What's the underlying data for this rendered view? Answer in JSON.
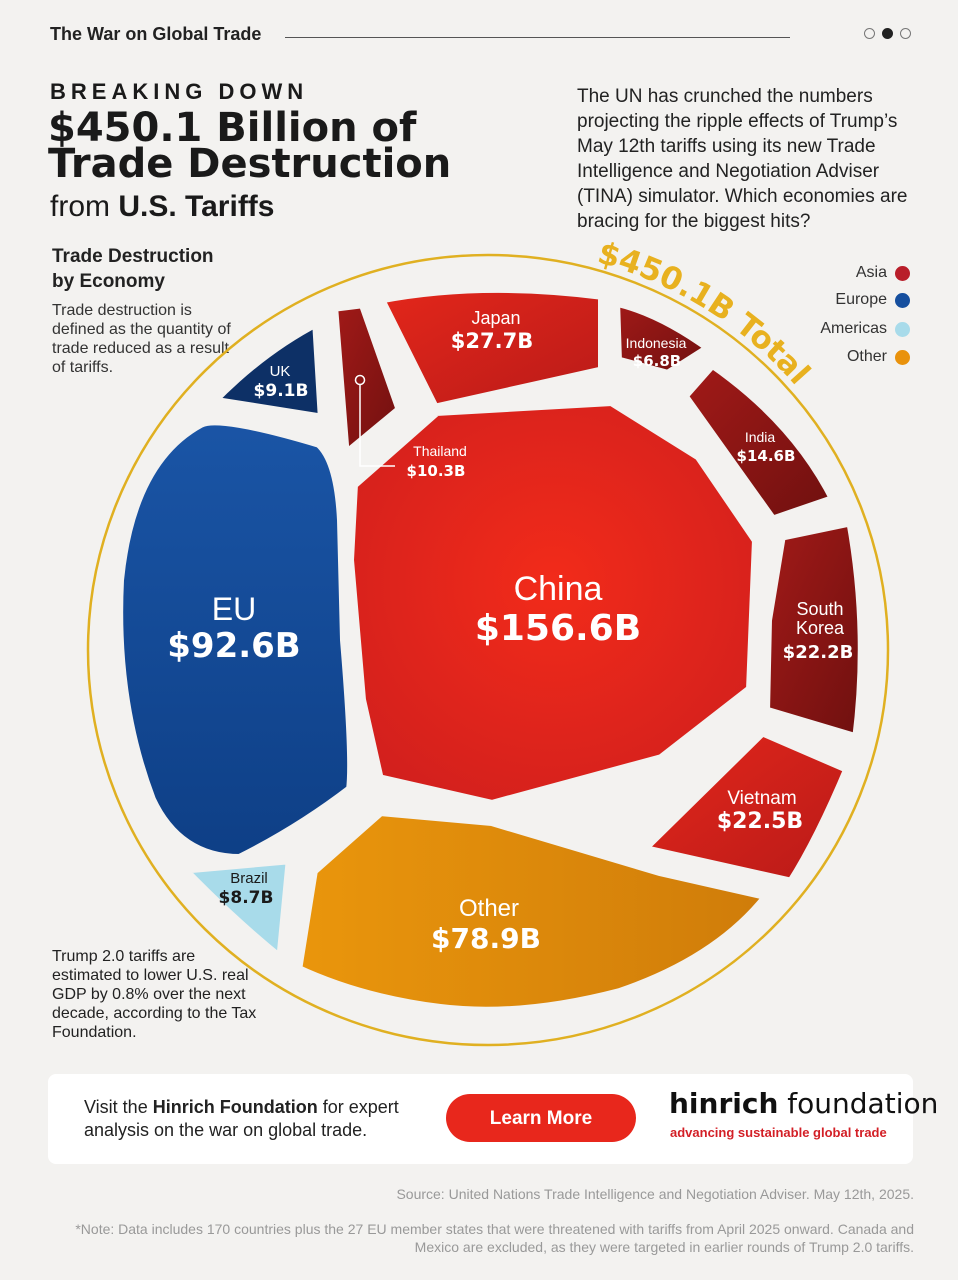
{
  "header": {
    "series_title": "The War on Global Trade",
    "kicker": "BREAKING DOWN",
    "headline_line1": "$450.1 Billion of",
    "headline_line2": "Trade Destruction",
    "subhead_prefix": "from ",
    "subhead_bold": "U.S. Tariffs",
    "intro": "The UN has crunched the numbers projecting the ripple effects of Trump’s May 12th tariffs using its new Trade Intelligence and Negotiation Adviser (TINA) simulator. Which economies are bracing for the biggest hits?"
  },
  "legend": {
    "title_line1": "Trade Destruction",
    "title_line2": "by Economy",
    "definition": "Trade destruction is defined as the quantity of trade reduced as a result of tariffs.",
    "regions": [
      {
        "label": "Asia",
        "color": "#b91e2a"
      },
      {
        "label": "Europe",
        "color": "#164f9e"
      },
      {
        "label": "Americas",
        "color": "#a8dbea"
      },
      {
        "label": "Other",
        "color": "#e9920c"
      }
    ]
  },
  "chart_data": {
    "type": "voronoi-treemap",
    "total_label": "$450.1B Total",
    "total": 450.1,
    "unit": "billion USD",
    "cells": [
      {
        "name": "China",
        "value_label": "$156.6B",
        "value": 156.6,
        "region": "Asia"
      },
      {
        "name": "EU",
        "value_label": "$92.6B",
        "value": 92.6,
        "region": "Europe"
      },
      {
        "name": "Other",
        "value_label": "$78.9B",
        "value": 78.9,
        "region": "Other"
      },
      {
        "name": "Japan",
        "value_label": "$27.7B",
        "value": 27.7,
        "region": "Asia"
      },
      {
        "name": "Vietnam",
        "value_label": "$22.5B",
        "value": 22.5,
        "region": "Asia"
      },
      {
        "name": "South Korea",
        "value_label": "$22.2B",
        "value": 22.2,
        "region": "Asia"
      },
      {
        "name": "India",
        "value_label": "$14.6B",
        "value": 14.6,
        "region": "Asia"
      },
      {
        "name": "Thailand",
        "value_label": "$10.3B",
        "value": 10.3,
        "region": "Asia"
      },
      {
        "name": "UK",
        "value_label": "$9.1B",
        "value": 9.1,
        "region": "Europe"
      },
      {
        "name": "Brazil",
        "value_label": "$8.7B",
        "value": 8.7,
        "region": "Americas"
      },
      {
        "name": "Indonesia",
        "value_label": "$6.8B",
        "value": 6.8,
        "region": "Asia"
      }
    ]
  },
  "gdp_note": "Trump 2.0 tariffs are estimated to lower U.S. real GDP by 0.8% over the next decade, according to the Tax Foundation.",
  "cta": {
    "text_prefix": "Visit the ",
    "text_bold": "Hinrich Foundation",
    "text_suffix": " for expert analysis on the war on global trade.",
    "button_label": "Learn More",
    "brand_bold": "hinrich",
    "brand_rest": " foundation",
    "brand_tagline": "advancing sustainable global trade"
  },
  "footer": {
    "source": "Source: United Nations Trade Intelligence and Negotiation Adviser. May 12th, 2025.",
    "note": "*Note: Data includes 170 countries plus the 27 EU member states that were threatened with tariffs from April 2025 onward. Canada and Mexico are excluded, as they were targeted in earlier rounds of Trump 2.0 tariffs."
  }
}
